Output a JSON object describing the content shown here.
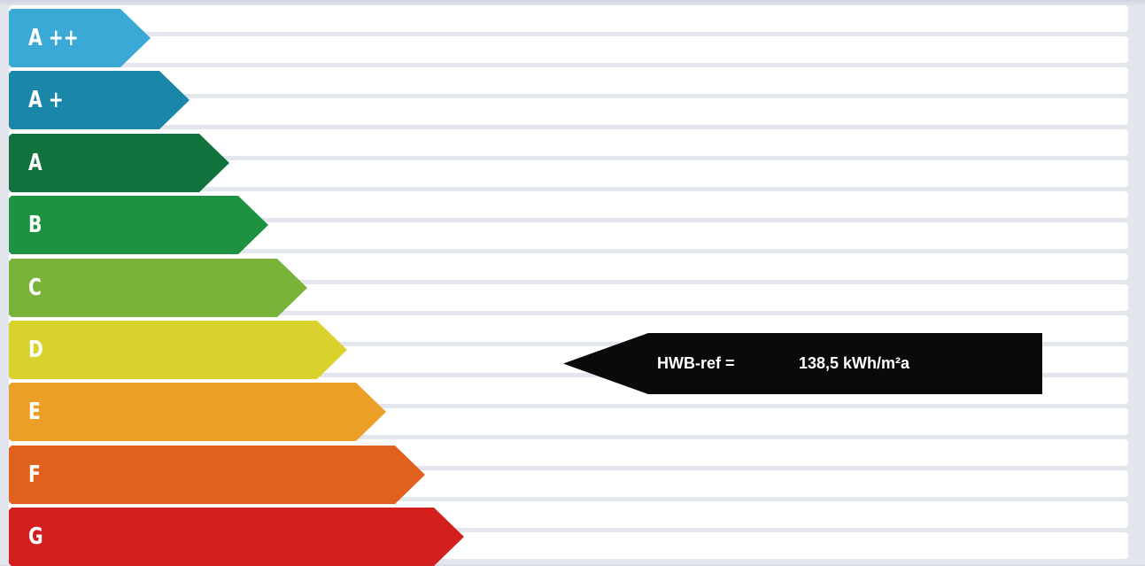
{
  "rating_bands": [
    {
      "label": "A ++",
      "color": "#3aa9d6"
    },
    {
      "label": "A +",
      "color": "#1a87a8"
    },
    {
      "label": "A",
      "color": "#12723d"
    },
    {
      "label": "B",
      "color": "#1d9241"
    },
    {
      "label": "C",
      "color": "#7ab33a"
    },
    {
      "label": "D",
      "color": "#d9d12c"
    },
    {
      "label": "E",
      "color": "#ec9f27"
    },
    {
      "label": "F",
      "color": "#e0601e"
    },
    {
      "label": "G",
      "color": "#d41f1f"
    }
  ],
  "indicator": {
    "label": "HWB-ref =",
    "value": "138,5 kWh/m²a",
    "color": "#0a0a0a"
  }
}
